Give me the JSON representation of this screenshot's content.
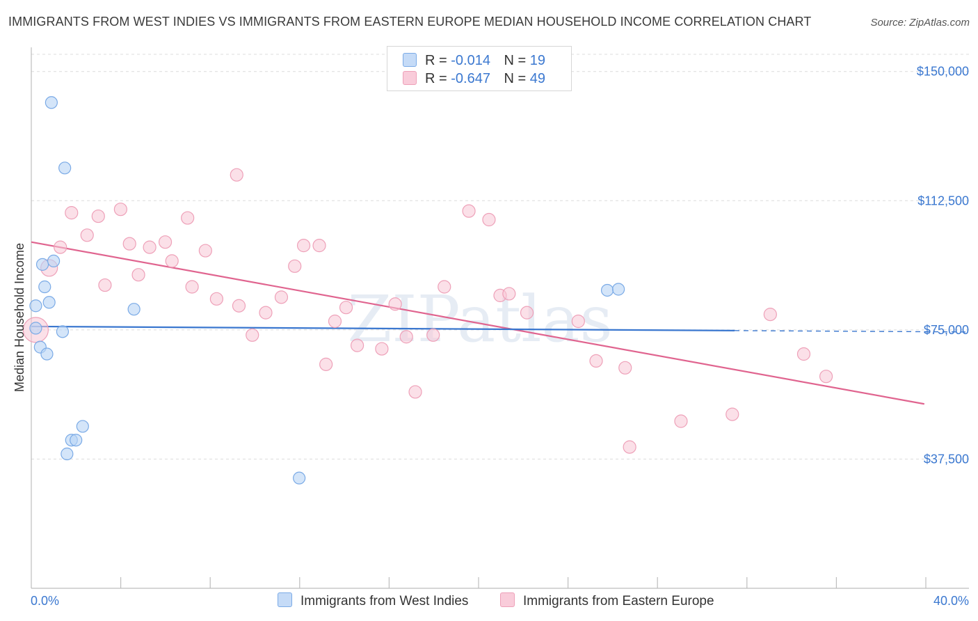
{
  "title": "IMMIGRANTS FROM WEST INDIES VS IMMIGRANTS FROM EASTERN EUROPE MEDIAN HOUSEHOLD INCOME CORRELATION CHART",
  "source": "Source: ZipAtlas.com",
  "watermark": "ZIPatlas",
  "colors": {
    "blue_fill": "#b8d3f5",
    "blue_stroke": "#7aaae6",
    "blue_line": "#3a77cf",
    "pink_fill": "#f8c6d5",
    "pink_stroke": "#eea0b8",
    "pink_line": "#e0648f",
    "accent_text": "#3b78d0"
  },
  "legend_top": [
    {
      "r_label": "R =",
      "r_value": "-0.014",
      "n_label": "N =",
      "n_value": "19"
    },
    {
      "r_label": "R =",
      "r_value": "-0.647",
      "n_label": "N =",
      "n_value": "49"
    }
  ],
  "legend_bottom": [
    "Immigrants from West Indies",
    "Immigrants from Eastern Europe"
  ],
  "chart_data": {
    "type": "scatter",
    "title": "IMMIGRANTS FROM WEST INDIES VS IMMIGRANTS FROM EASTERN EUROPE MEDIAN HOUSEHOLD INCOME CORRELATION CHART",
    "xlabel": "",
    "ylabel": "Median Household Income",
    "xlim": [
      0,
      42
    ],
    "ylim": [
      0,
      155000
    ],
    "x_tick_labels": [
      "0.0%",
      "40.0%"
    ],
    "y_ticks": [
      37500,
      75000,
      112500,
      150000
    ],
    "y_tick_labels": [
      "$37,500",
      "$75,000",
      "$112,500",
      "$150,000"
    ],
    "grid": true,
    "series": [
      {
        "name": "Immigrants from West Indies",
        "color": "blue",
        "points": [
          [
            0.2,
            75500
          ],
          [
            0.2,
            82000
          ],
          [
            0.4,
            70000
          ],
          [
            0.5,
            94000
          ],
          [
            0.6,
            87500
          ],
          [
            0.7,
            68000
          ],
          [
            0.8,
            83000
          ],
          [
            0.9,
            141000
          ],
          [
            1.0,
            95000
          ],
          [
            1.4,
            74500
          ],
          [
            1.5,
            122000
          ],
          [
            1.6,
            39000
          ],
          [
            1.8,
            43000
          ],
          [
            2.0,
            43000
          ],
          [
            2.3,
            47000
          ],
          [
            4.6,
            81000
          ],
          [
            12.0,
            32000
          ],
          [
            25.8,
            86500
          ],
          [
            26.3,
            86800
          ]
        ],
        "trend": {
          "x0": 0,
          "y0": 76000,
          "x1": 31.5,
          "y1": 74800,
          "dash_to_x": 42,
          "dash_y": 74400
        }
      },
      {
        "name": "Immigrants from Eastern Europe",
        "color": "pink",
        "points": [
          [
            0.2,
            75000
          ],
          [
            0.8,
            93000
          ],
          [
            1.3,
            99000
          ],
          [
            1.8,
            109000
          ],
          [
            2.5,
            102500
          ],
          [
            3.0,
            108000
          ],
          [
            3.3,
            88000
          ],
          [
            4.0,
            110000
          ],
          [
            4.4,
            100000
          ],
          [
            4.8,
            91000
          ],
          [
            5.3,
            99000
          ],
          [
            6.0,
            100500
          ],
          [
            6.3,
            95000
          ],
          [
            7.0,
            107500
          ],
          [
            7.2,
            87500
          ],
          [
            7.8,
            98000
          ],
          [
            8.3,
            84000
          ],
          [
            9.2,
            120000
          ],
          [
            9.3,
            82000
          ],
          [
            9.9,
            73500
          ],
          [
            10.5,
            80000
          ],
          [
            11.2,
            84500
          ],
          [
            11.8,
            93500
          ],
          [
            12.2,
            99500
          ],
          [
            12.9,
            99500
          ],
          [
            13.2,
            65000
          ],
          [
            13.6,
            77500
          ],
          [
            14.1,
            81500
          ],
          [
            14.6,
            70500
          ],
          [
            15.7,
            69500
          ],
          [
            16.3,
            82500
          ],
          [
            16.8,
            73000
          ],
          [
            17.2,
            57000
          ],
          [
            18.0,
            73500
          ],
          [
            18.5,
            87500
          ],
          [
            19.6,
            109500
          ],
          [
            20.5,
            107000
          ],
          [
            21.0,
            85000
          ],
          [
            21.4,
            85500
          ],
          [
            22.2,
            80000
          ],
          [
            24.5,
            77500
          ],
          [
            25.3,
            66000
          ],
          [
            26.6,
            64000
          ],
          [
            26.8,
            41000
          ],
          [
            29.1,
            48500
          ],
          [
            31.4,
            50500
          ],
          [
            33.1,
            79500
          ],
          [
            34.6,
            68000
          ],
          [
            35.6,
            61500
          ]
        ],
        "trend": {
          "x0": 0,
          "y0": 100500,
          "x1": 40,
          "y1": 53500
        }
      }
    ]
  }
}
